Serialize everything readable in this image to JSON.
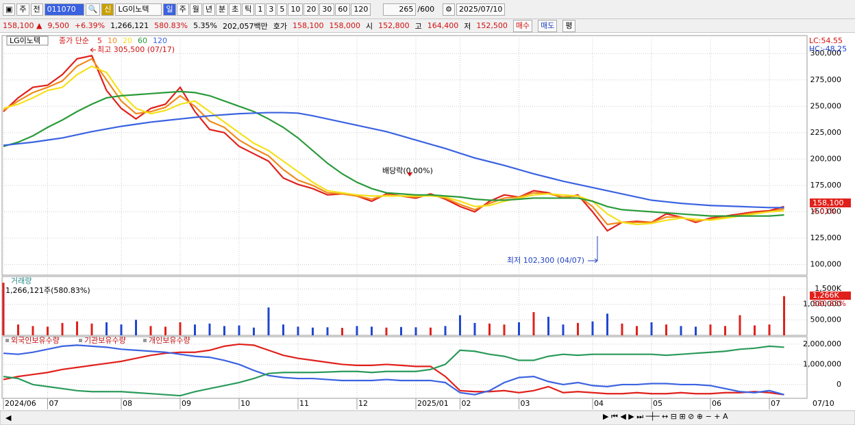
{
  "toolbar": {
    "market": "주",
    "prev": "전",
    "code": "011070",
    "credit": "신",
    "name": "LG이노텍",
    "periods": [
      "일",
      "주",
      "월",
      "년",
      "분",
      "초",
      "틱",
      "1",
      "3",
      "5",
      "10",
      "20",
      "30",
      "60",
      "120"
    ],
    "count": "265",
    "max": "/600",
    "date": "2025/07/10"
  },
  "quote": {
    "price": "158,100 ▲",
    "change": "9,500",
    "rate": "+6.39%",
    "volume": "1,266,121",
    "volume_ratio": "580.83%",
    "turnover": "5.35%",
    "amount": "202,057백만",
    "bid_label": "호가",
    "ask": "158,100",
    "bid": "158,000",
    "open_label": "시",
    "open": "152,800",
    "high_label": "고",
    "high": "164,400",
    "low_label": "저",
    "low": "152,500",
    "buy": "매수",
    "sell": "매도",
    "avg": "평"
  },
  "chart_data": [
    {
      "type": "line",
      "name": "LG이노텍",
      "legend_title": "종가 단순",
      "lc": "LC:54.55",
      "hc": "HC:-48.25",
      "last_label": "158,100",
      "last_rate": "4.01%",
      "annotations": [
        "최고 305,500 (07/17)",
        "배당락(0.00%)",
        "최저 102,300 (04/07)"
      ],
      "categories": [
        "2024/06",
        null,
        null,
        "07",
        null,
        null,
        null,
        null,
        "08",
        null,
        null,
        null,
        "09",
        null,
        null,
        null,
        "10",
        null,
        null,
        null,
        "11",
        null,
        null,
        null,
        "12",
        null,
        null,
        null,
        "2025/01",
        null,
        null,
        "02",
        null,
        null,
        null,
        "03",
        null,
        null,
        null,
        null,
        "04",
        null,
        null,
        null,
        "05",
        null,
        null,
        null,
        "06",
        null,
        null,
        null,
        "07",
        null
      ],
      "last_date": "07/10",
      "ylim": [
        90000,
        317000
      ],
      "yticks": [
        {
          "value": 100000,
          "label": "100,000"
        },
        {
          "value": 125000,
          "label": "125,000"
        },
        {
          "value": 150000,
          "label": "150,000"
        },
        {
          "value": 175000,
          "label": "175,000"
        },
        {
          "value": 200000,
          "label": "200,000"
        },
        {
          "value": 225000,
          "label": "225,000"
        },
        {
          "value": 250000,
          "label": "250,000"
        },
        {
          "value": 275000,
          "label": "275,000"
        },
        {
          "value": 300000,
          "label": "300,000"
        }
      ],
      "grid": true,
      "series": [
        {
          "name": "5",
          "color": "#e0201b",
          "values": [
            245000,
            258000,
            268000,
            270000,
            280000,
            295000,
            298000,
            265000,
            248000,
            238000,
            248000,
            252000,
            268000,
            245000,
            228000,
            225000,
            212000,
            205000,
            198000,
            182000,
            176000,
            172000,
            166000,
            167000,
            165000,
            160000,
            167000,
            165000,
            163000,
            167000,
            162000,
            155000,
            150000,
            160000,
            166000,
            164000,
            170000,
            168000,
            163000,
            166000,
            150000,
            132000,
            140000,
            141000,
            140000,
            148000,
            145000,
            140000,
            144000,
            146000,
            148000,
            150000,
            151000,
            155000
          ]
        },
        {
          "name": "10",
          "color": "#f08a1c",
          "values": [
            246000,
            255000,
            263000,
            268000,
            274000,
            288000,
            295000,
            275000,
            255000,
            243000,
            245000,
            249000,
            260000,
            250000,
            236000,
            230000,
            218000,
            210000,
            203000,
            190000,
            180000,
            175000,
            168000,
            167000,
            165000,
            162000,
            166000,
            165000,
            164000,
            166000,
            163000,
            157000,
            152000,
            158000,
            163000,
            164000,
            168000,
            167000,
            164000,
            165000,
            155000,
            138000,
            140000,
            140000,
            140000,
            145000,
            145000,
            141000,
            143000,
            145000,
            147000,
            149000,
            150000,
            153000
          ]
        },
        {
          "name": "20",
          "color": "#f5e11a",
          "values": [
            248000,
            252000,
            258000,
            265000,
            268000,
            280000,
            288000,
            282000,
            262000,
            248000,
            243000,
            246000,
            252000,
            255000,
            245000,
            235000,
            225000,
            215000,
            208000,
            198000,
            188000,
            178000,
            170000,
            168000,
            166000,
            165000,
            165000,
            165000,
            165000,
            165000,
            164000,
            160000,
            155000,
            156000,
            160000,
            163000,
            166000,
            167000,
            166000,
            165000,
            160000,
            148000,
            140000,
            138000,
            139000,
            142000,
            144000,
            143000,
            142000,
            144000,
            146000,
            148000,
            150000,
            151000
          ]
        },
        {
          "name": "60",
          "color": "#2a9a3a",
          "values": [
            212000,
            216000,
            222000,
            230000,
            237000,
            245000,
            252000,
            258000,
            260000,
            261000,
            262000,
            263000,
            264000,
            263000,
            260000,
            255000,
            250000,
            245000,
            238000,
            230000,
            220000,
            208000,
            196000,
            186000,
            178000,
            172000,
            168000,
            167000,
            166000,
            166000,
            165000,
            164000,
            162000,
            161000,
            161000,
            162000,
            163000,
            163000,
            163000,
            163000,
            160000,
            155000,
            152000,
            151000,
            150000,
            149000,
            148000,
            147000,
            146000,
            146000,
            146000,
            146000,
            146000,
            147000
          ]
        },
        {
          "name": "120",
          "color": "#3a62e0",
          "values": [
            213000,
            214500,
            216000,
            218000,
            220000,
            223000,
            226000,
            228500,
            231000,
            233000,
            235000,
            236500,
            238000,
            239500,
            241000,
            242000,
            243000,
            243500,
            244000,
            244000,
            243500,
            241000,
            238000,
            235000,
            232000,
            229000,
            226000,
            222000,
            218000,
            214000,
            210000,
            205500,
            201000,
            197500,
            194000,
            190000,
            186000,
            182500,
            179000,
            176000,
            173000,
            170000,
            167000,
            164000,
            161000,
            159500,
            158000,
            157000,
            156000,
            155500,
            155000,
            154500,
            154000,
            154000
          ]
        }
      ]
    },
    {
      "type": "bar",
      "name": "거래량",
      "summary": "1,266,121주(580.83%)",
      "last_label": "1,266K",
      "last_ratio": "580.83%",
      "up_color": "#e0201b",
      "down_color": "#2046d0",
      "ylim": [
        0,
        1900000
      ],
      "yticks": [
        {
          "value": 500000,
          "label": "500,000"
        },
        {
          "value": 1000000,
          "label": "1,000,000"
        },
        {
          "value": 1500000,
          "label": "1,500K"
        }
      ],
      "values": [
        1700000,
        350000,
        300000,
        280000,
        400000,
        450000,
        380000,
        420000,
        350000,
        500000,
        300000,
        280000,
        420000,
        350000,
        380000,
        300000,
        320000,
        250000,
        900000,
        350000,
        280000,
        250000,
        260000,
        240000,
        300000,
        280000,
        250000,
        270000,
        260000,
        250000,
        300000,
        650000,
        400000,
        380000,
        350000,
        420000,
        750000,
        600000,
        350000,
        400000,
        450000,
        700000,
        380000,
        300000,
        420000,
        350000,
        300000,
        280000,
        350000,
        300000,
        650000,
        320000,
        350000,
        1266121
      ]
    },
    {
      "type": "line",
      "ylim": [
        -680000,
        2370000
      ],
      "yticks": [
        0,
        {
          "value": 1000000,
          "label": "1,000,000"
        },
        {
          "value": 2000000,
          "label": "2,000,000"
        }
      ],
      "series": [
        {
          "name": "외국인보유수량",
          "color": "#e0201b",
          "values": [
            250000,
            400000,
            500000,
            600000,
            750000,
            850000,
            950000,
            1050000,
            1150000,
            1300000,
            1450000,
            1550000,
            1600000,
            1600000,
            1700000,
            1900000,
            2000000,
            1950000,
            1700000,
            1450000,
            1300000,
            1200000,
            1100000,
            1000000,
            950000,
            950000,
            1000000,
            950000,
            900000,
            900000,
            400000,
            -300000,
            -350000,
            -350000,
            -300000,
            -400000,
            -300000,
            -100000,
            -400000,
            -350000,
            -400000,
            -450000,
            -450000,
            -400000,
            -450000,
            -450000,
            -400000,
            -450000,
            -450000,
            -400000,
            -400000,
            -350000,
            -400000,
            -500000
          ]
        },
        {
          "name": "기관보유수량",
          "color": "#3a62e0",
          "values": [
            1550000,
            1500000,
            1600000,
            1750000,
            1900000,
            1950000,
            1900000,
            1850000,
            1750000,
            1700000,
            1650000,
            1600000,
            1500000,
            1400000,
            1350000,
            1200000,
            1000000,
            700000,
            450000,
            350000,
            300000,
            300000,
            250000,
            200000,
            200000,
            200000,
            250000,
            200000,
            200000,
            200000,
            100000,
            -400000,
            -500000,
            -300000,
            100000,
            350000,
            400000,
            150000,
            0,
            100000,
            -50000,
            -100000,
            0,
            0,
            50000,
            50000,
            0,
            0,
            -50000,
            -200000,
            -350000,
            -400000,
            -300000,
            -500000
          ]
        },
        {
          "name": "개인보유수량",
          "color": "#2a9a5a",
          "values": [
            400000,
            300000,
            0,
            -100000,
            -200000,
            -300000,
            -350000,
            -350000,
            -350000,
            -400000,
            -450000,
            -500000,
            -550000,
            -350000,
            -200000,
            -50000,
            100000,
            300000,
            550000,
            600000,
            600000,
            600000,
            620000,
            650000,
            650000,
            600000,
            650000,
            650000,
            650000,
            750000,
            1000000,
            1700000,
            1650000,
            1500000,
            1400000,
            1200000,
            1200000,
            1400000,
            1500000,
            1450000,
            1500000,
            1500000,
            1500000,
            1500000,
            1500000,
            1450000,
            1500000,
            1550000,
            1600000,
            1650000,
            1750000,
            1800000,
            1900000,
            1850000
          ]
        }
      ]
    }
  ]
}
